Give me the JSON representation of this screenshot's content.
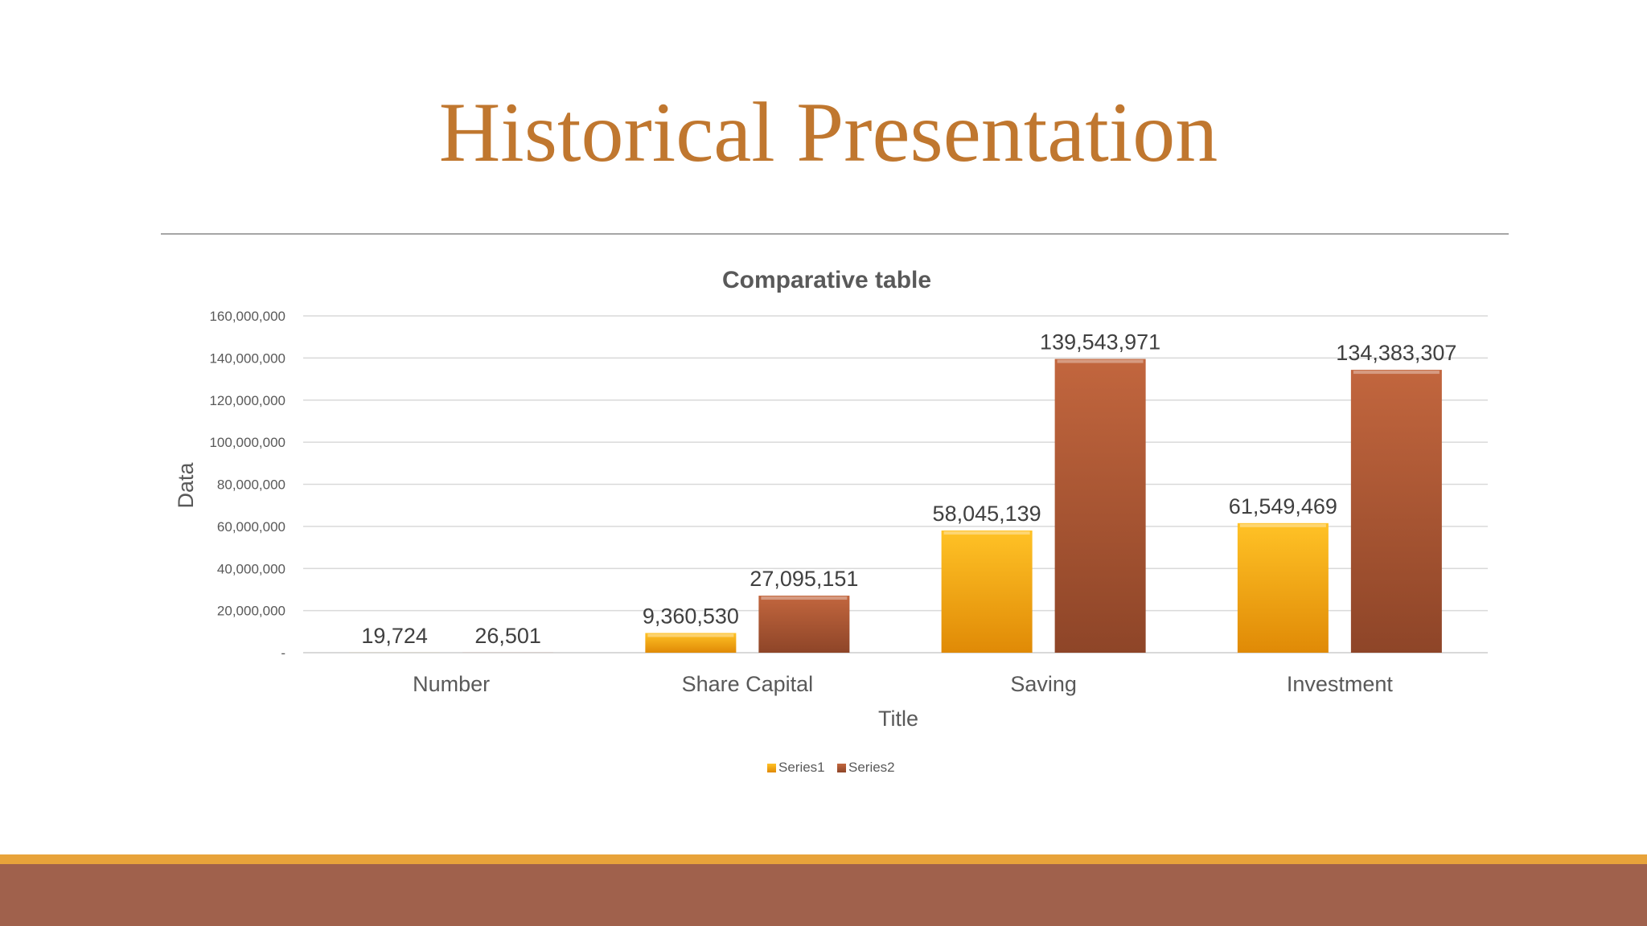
{
  "slide": {
    "title": "Historical Presentation"
  },
  "colors": {
    "title": "#c0772f",
    "rule": "#a6a6a6",
    "gridline": "#d9d9d9",
    "series1_top": "#ffc226",
    "series1_bottom": "#e08a06",
    "series2_top": "#c2663e",
    "series2_bottom": "#8e4528",
    "footer_stripe": "#e8a33a",
    "footer_band": "#a0614c"
  },
  "chart_data": {
    "type": "bar",
    "title": "Comparative table",
    "xlabel": "Title",
    "ylabel": "Data",
    "categories": [
      "Number",
      "Share Capital",
      "Saving",
      "Investment"
    ],
    "series": [
      {
        "name": "Series1",
        "values": [
          19724,
          9360530,
          58045139,
          61549469
        ],
        "labels": [
          "19,724",
          "9,360,530",
          "58,045,139",
          "61,549,469"
        ]
      },
      {
        "name": "Series2",
        "values": [
          26501,
          27095151,
          139543971,
          134383307
        ],
        "labels": [
          "26,501",
          "27,095,151",
          "139,543,971",
          "134,383,307"
        ]
      }
    ],
    "ylim": [
      0,
      160000000
    ],
    "yticks": [
      0,
      20000000,
      40000000,
      60000000,
      80000000,
      100000000,
      120000000,
      140000000,
      160000000
    ],
    "ytick_labels": [
      "-",
      "20,000,000",
      "40,000,000",
      "60,000,000",
      "80,000,000",
      "100,000,000",
      "120,000,000",
      "140,000,000",
      "160,000,000"
    ],
    "grid": true,
    "legend": "bottom"
  }
}
